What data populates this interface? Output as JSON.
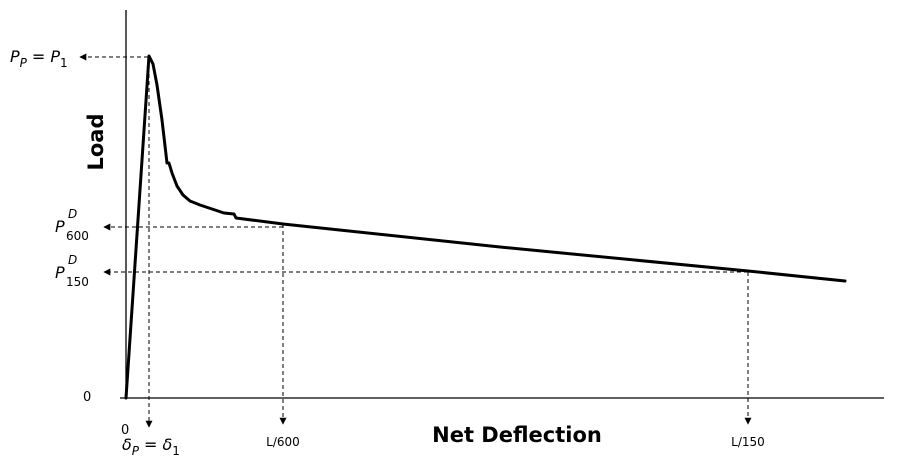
{
  "axes": {
    "y_title": "Load",
    "x_title": "Net Deflection",
    "origin_y_label": "0",
    "origin_x_label": "0"
  },
  "y_markers": {
    "peak": {
      "main": "P",
      "sub": "P",
      "equals": "=",
      "main2": "P",
      "sub2": "1"
    },
    "p600": {
      "main": "P",
      "sup": "D",
      "sub": "600"
    },
    "p150": {
      "main": "P",
      "sup": "D",
      "sub": "150"
    }
  },
  "x_markers": {
    "peak": {
      "main": "δ",
      "sub": "P",
      "equals": "=",
      "main2": "δ",
      "sub2": "1"
    },
    "l600": "L/600",
    "l150": "L/150"
  }
}
